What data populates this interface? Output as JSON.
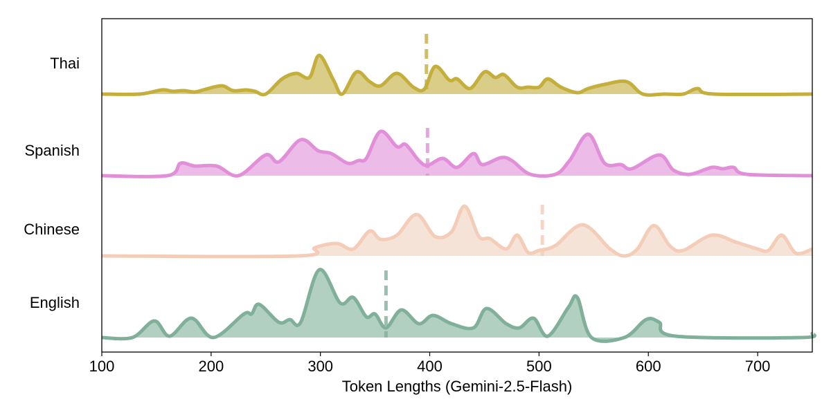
{
  "chart_data": {
    "type": "ridgeline",
    "title": "",
    "xlabel": "Token Lengths (Gemini-2.5-Flash)",
    "ylabel": "",
    "xlim": [
      100,
      750
    ],
    "xticks": [
      100,
      200,
      300,
      400,
      500,
      600,
      700
    ],
    "grid": false,
    "legend": "none (category labels on y-axis)",
    "series": [
      {
        "name": "Thai",
        "color": "#c4ae3c",
        "fill": "#d9cd88",
        "median": 397,
        "density_peaks": [
          [
            100,
            0
          ],
          [
            135,
            0
          ],
          [
            155,
            6
          ],
          [
            165,
            4
          ],
          [
            175,
            5
          ],
          [
            185,
            3
          ],
          [
            195,
            7
          ],
          [
            210,
            12
          ],
          [
            220,
            5
          ],
          [
            232,
            6
          ],
          [
            240,
            4
          ],
          [
            250,
            0
          ],
          [
            265,
            22
          ],
          [
            278,
            30
          ],
          [
            290,
            24
          ],
          [
            299,
            56
          ],
          [
            312,
            20
          ],
          [
            320,
            0
          ],
          [
            333,
            32
          ],
          [
            345,
            18
          ],
          [
            355,
            12
          ],
          [
            370,
            30
          ],
          [
            385,
            10
          ],
          [
            395,
            7
          ],
          [
            405,
            40
          ],
          [
            418,
            20
          ],
          [
            425,
            22
          ],
          [
            437,
            8
          ],
          [
            450,
            32
          ],
          [
            460,
            24
          ],
          [
            468,
            28
          ],
          [
            480,
            10
          ],
          [
            490,
            10
          ],
          [
            500,
            10
          ],
          [
            508,
            22
          ],
          [
            520,
            10
          ],
          [
            535,
            2
          ],
          [
            545,
            8
          ],
          [
            560,
            14
          ],
          [
            580,
            18
          ],
          [
            595,
            0
          ],
          [
            615,
            0
          ],
          [
            632,
            0
          ],
          [
            645,
            8
          ],
          [
            660,
            0
          ],
          [
            750,
            0
          ]
        ]
      },
      {
        "name": "Spanish",
        "color": "#e08fd8",
        "fill": "#ecbbe7",
        "median": 398,
        "density_peaks": [
          [
            100,
            0
          ],
          [
            160,
            0
          ],
          [
            172,
            18
          ],
          [
            185,
            14
          ],
          [
            205,
            14
          ],
          [
            225,
            0
          ],
          [
            250,
            30
          ],
          [
            262,
            20
          ],
          [
            282,
            52
          ],
          [
            298,
            36
          ],
          [
            310,
            32
          ],
          [
            325,
            18
          ],
          [
            335,
            22
          ],
          [
            342,
            25
          ],
          [
            355,
            64
          ],
          [
            370,
            42
          ],
          [
            378,
            45
          ],
          [
            390,
            22
          ],
          [
            398,
            15
          ],
          [
            412,
            25
          ],
          [
            425,
            12
          ],
          [
            440,
            32
          ],
          [
            448,
            16
          ],
          [
            465,
            26
          ],
          [
            475,
            22
          ],
          [
            492,
            2
          ],
          [
            515,
            2
          ],
          [
            528,
            22
          ],
          [
            545,
            60
          ],
          [
            560,
            18
          ],
          [
            575,
            16
          ],
          [
            585,
            10
          ],
          [
            610,
            30
          ],
          [
            623,
            8
          ],
          [
            638,
            2
          ],
          [
            658,
            12
          ],
          [
            668,
            10
          ],
          [
            678,
            12
          ],
          [
            690,
            2
          ],
          [
            750,
            0
          ]
        ]
      },
      {
        "name": "Chinese",
        "color": "#f3cdb8",
        "fill": "#f6e3d8",
        "median": 503,
        "density_peaks": [
          [
            100,
            0
          ],
          [
            280,
            0
          ],
          [
            295,
            12
          ],
          [
            315,
            18
          ],
          [
            330,
            10
          ],
          [
            345,
            36
          ],
          [
            355,
            24
          ],
          [
            370,
            30
          ],
          [
            388,
            60
          ],
          [
            405,
            28
          ],
          [
            420,
            35
          ],
          [
            432,
            72
          ],
          [
            445,
            28
          ],
          [
            455,
            25
          ],
          [
            470,
            10
          ],
          [
            480,
            30
          ],
          [
            490,
            5
          ],
          [
            500,
            8
          ],
          [
            515,
            15
          ],
          [
            540,
            45
          ],
          [
            565,
            10
          ],
          [
            578,
            0
          ],
          [
            590,
            10
          ],
          [
            605,
            44
          ],
          [
            620,
            14
          ],
          [
            632,
            8
          ],
          [
            658,
            30
          ],
          [
            680,
            20
          ],
          [
            700,
            10
          ],
          [
            710,
            8
          ],
          [
            722,
            30
          ],
          [
            735,
            4
          ],
          [
            750,
            10
          ]
        ]
      },
      {
        "name": "English",
        "color": "#80b09a",
        "fill": "#b1d0c2",
        "median": 360,
        "density_peaks": [
          [
            100,
            0
          ],
          [
            128,
            0
          ],
          [
            148,
            24
          ],
          [
            162,
            2
          ],
          [
            182,
            28
          ],
          [
            202,
            0
          ],
          [
            230,
            34
          ],
          [
            237,
            34
          ],
          [
            244,
            48
          ],
          [
            262,
            22
          ],
          [
            272,
            26
          ],
          [
            282,
            22
          ],
          [
            299,
            98
          ],
          [
            318,
            50
          ],
          [
            330,
            58
          ],
          [
            342,
            30
          ],
          [
            350,
            34
          ],
          [
            360,
            14
          ],
          [
            374,
            40
          ],
          [
            390,
            20
          ],
          [
            403,
            32
          ],
          [
            420,
            20
          ],
          [
            440,
            14
          ],
          [
            452,
            42
          ],
          [
            470,
            20
          ],
          [
            482,
            14
          ],
          [
            495,
            28
          ],
          [
            508,
            2
          ],
          [
            527,
            44
          ],
          [
            535,
            58
          ],
          [
            548,
            0
          ],
          [
            578,
            0
          ],
          [
            598,
            26
          ],
          [
            610,
            22
          ],
          [
            625,
            2
          ],
          [
            740,
            0
          ],
          [
            750,
            6
          ]
        ]
      }
    ],
    "ytick_labels": [
      "Thai",
      "Spanish",
      "Chinese",
      "English"
    ]
  }
}
